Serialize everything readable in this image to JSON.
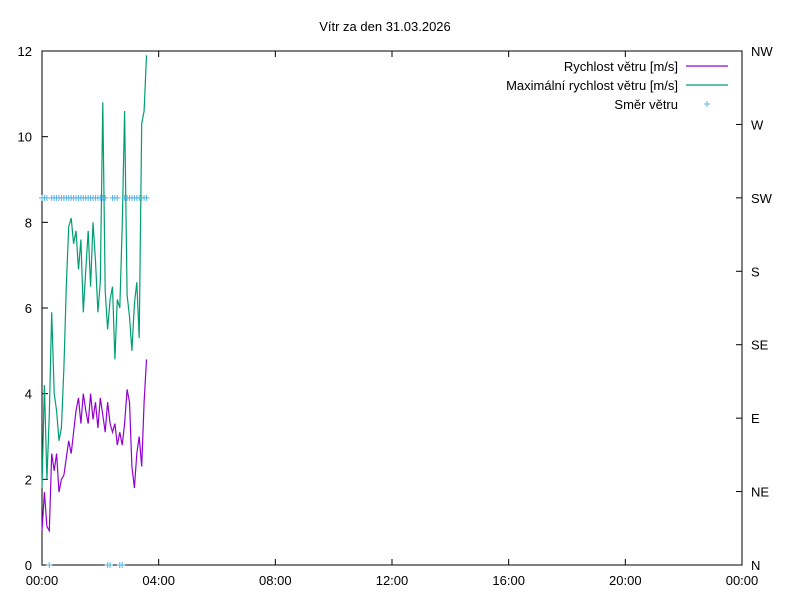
{
  "chart_data": {
    "type": "line",
    "title": "Vítr za den 31.03.2026",
    "xlabel": "",
    "ylabel": "",
    "xlim": [
      "00:00",
      "24:00"
    ],
    "ylim": [
      0,
      12
    ],
    "y2lim": [
      0,
      7
    ],
    "grid": false,
    "legend_position": "top-right",
    "x_tick_labels": [
      "00:00",
      "04:00",
      "08:00",
      "12:00",
      "16:00",
      "20:00",
      "00:00"
    ],
    "y_tick_labels": [
      "0",
      "2",
      "4",
      "6",
      "8",
      "10",
      "12"
    ],
    "y2_tick_labels": [
      "N",
      "NE",
      "E",
      "SE",
      "S",
      "SW",
      "W",
      "NW"
    ],
    "colors": {
      "speed": "#9400d3",
      "gust": "#009e73",
      "direction": "#56b4e9"
    },
    "series": [
      {
        "name": "Rychlost větru [m/s]",
        "axis": "y",
        "x": [
          "00:00",
          "00:05",
          "00:10",
          "00:15",
          "00:20",
          "00:25",
          "00:30",
          "00:35",
          "00:40",
          "00:45",
          "00:50",
          "00:55",
          "01:00",
          "01:05",
          "01:10",
          "01:15",
          "01:20",
          "01:25",
          "01:30",
          "01:35",
          "01:40",
          "01:45",
          "01:50",
          "01:55",
          "02:00",
          "02:05",
          "02:10",
          "02:15",
          "02:20",
          "02:25",
          "02:30",
          "02:35",
          "02:40",
          "02:45",
          "02:50",
          "02:55",
          "03:00",
          "03:05",
          "03:10",
          "03:15",
          "03:20",
          "03:25",
          "03:30",
          "03:35"
        ],
        "values": [
          0.8,
          1.7,
          0.9,
          0.8,
          2.6,
          2.2,
          2.6,
          1.7,
          2.0,
          2.1,
          2.5,
          2.9,
          2.6,
          3.1,
          3.6,
          3.9,
          3.3,
          4.0,
          3.6,
          3.3,
          4.0,
          3.4,
          3.8,
          3.2,
          3.9,
          3.5,
          3.1,
          3.8,
          3.3,
          3.1,
          3.3,
          2.8,
          3.1,
          2.8,
          3.3,
          4.1,
          3.8,
          2.3,
          1.8,
          2.6,
          3.0,
          2.3,
          3.8,
          4.8
        ]
      },
      {
        "name": "Maximální rychlost větru [m/s]",
        "axis": "y",
        "x": [
          "00:00",
          "00:05",
          "00:10",
          "00:15",
          "00:20",
          "00:25",
          "00:30",
          "00:35",
          "00:40",
          "00:45",
          "00:50",
          "00:55",
          "01:00",
          "01:05",
          "01:10",
          "01:15",
          "01:20",
          "01:25",
          "01:30",
          "01:35",
          "01:40",
          "01:45",
          "01:50",
          "01:55",
          "02:00",
          "02:05",
          "02:10",
          "02:15",
          "02:20",
          "02:25",
          "02:30",
          "02:35",
          "02:40",
          "02:45",
          "02:50",
          "02:55",
          "03:00",
          "03:05",
          "03:10",
          "03:15",
          "03:20",
          "03:25",
          "03:30",
          "03:35"
        ],
        "values": [
          1.8,
          4.2,
          2.0,
          3.5,
          5.9,
          4.0,
          3.6,
          2.9,
          3.2,
          4.6,
          6.5,
          7.9,
          8.1,
          7.5,
          7.8,
          6.9,
          7.6,
          5.9,
          6.9,
          7.8,
          6.5,
          8.0,
          7.1,
          5.9,
          6.6,
          10.8,
          6.4,
          5.5,
          6.2,
          6.5,
          4.8,
          6.2,
          6.0,
          7.9,
          10.6,
          6.3,
          5.8,
          5.0,
          6.1,
          6.6,
          5.3,
          10.3,
          10.6,
          11.9
        ]
      },
      {
        "name": "Směr větru",
        "axis": "y2",
        "style": "points",
        "x": [
          "00:00",
          "00:05",
          "00:10",
          "00:15",
          "00:20",
          "00:25",
          "00:30",
          "00:35",
          "00:40",
          "00:45",
          "00:50",
          "00:55",
          "01:00",
          "01:05",
          "01:10",
          "01:15",
          "01:20",
          "01:25",
          "01:30",
          "01:35",
          "01:40",
          "01:45",
          "01:50",
          "01:55",
          "02:00",
          "02:05",
          "02:10",
          "02:15",
          "02:20",
          "02:25",
          "02:30",
          "02:35",
          "02:40",
          "02:45",
          "02:50",
          "02:55",
          "03:00",
          "03:05",
          "03:10",
          "03:15",
          "03:20",
          "03:25",
          "03:30",
          "03:35"
        ],
        "values": [
          5,
          5,
          5,
          0,
          5,
          5,
          5,
          5,
          5,
          5,
          5,
          5,
          5,
          5,
          5,
          5,
          5,
          5,
          5,
          5,
          5,
          5,
          5,
          5,
          5,
          5,
          5,
          0,
          0,
          5,
          5,
          5,
          0,
          0,
          5,
          5,
          5,
          5,
          5,
          5,
          5,
          5,
          5,
          5
        ]
      }
    ]
  }
}
